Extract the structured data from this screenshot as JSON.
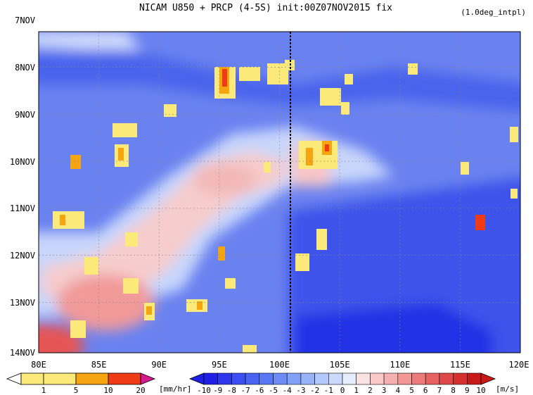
{
  "chart_data": {
    "type": "heatmap",
    "title": "NICAM  U850 + PRCP (4-5S) init:00Z07NOV2015 fix",
    "subtitle": "(1.0deg_intpl)",
    "x_ticks": [
      "80E",
      "85E",
      "90E",
      "95E",
      "100E",
      "105E",
      "110E",
      "115E",
      "120E"
    ],
    "x_values": [
      80,
      85,
      90,
      95,
      100,
      105,
      110,
      115,
      120
    ],
    "xlim": [
      80,
      120
    ],
    "y_ticks": [
      "7NOV",
      "8NOV",
      "9NOV",
      "10NOV",
      "11NOV",
      "12NOV",
      "13NOV",
      "14NOV"
    ],
    "y_values": [
      7,
      8,
      9,
      10,
      11,
      12,
      13,
      14
    ],
    "ylim": [
      7,
      14
    ],
    "grid": true,
    "reference_line_x": 101.1,
    "prcp_colorbar": {
      "labels": [
        "1",
        "5",
        "10",
        "20"
      ],
      "unit": "[mm/hr]",
      "colors": [
        "#ffffff",
        "#fbe97a",
        "#f6a40f",
        "#ef3c17",
        "#d41a8e"
      ]
    },
    "u850_colorbar": {
      "labels": [
        "-10",
        "-9",
        "-8",
        "-7",
        "-6",
        "-5",
        "-4",
        "-3",
        "-2",
        "-1",
        "0",
        "1",
        "2",
        "3",
        "4",
        "5",
        "6",
        "7",
        "8",
        "9",
        "10"
      ],
      "unit": "[m/s]",
      "colors": [
        "#1f1fe6",
        "#2f37ee",
        "#3b4ff2",
        "#4b63f2",
        "#5a78f4",
        "#6d8cf6",
        "#82a0f7",
        "#98b3f8",
        "#b2c7fa",
        "#cbd9fc",
        "#e6eefd",
        "#fbe3e3",
        "#f9c9c9",
        "#f6b0b0",
        "#f29696",
        "#ec7c7c",
        "#e66262",
        "#de4848",
        "#d43030",
        "#c81818"
      ]
    }
  }
}
